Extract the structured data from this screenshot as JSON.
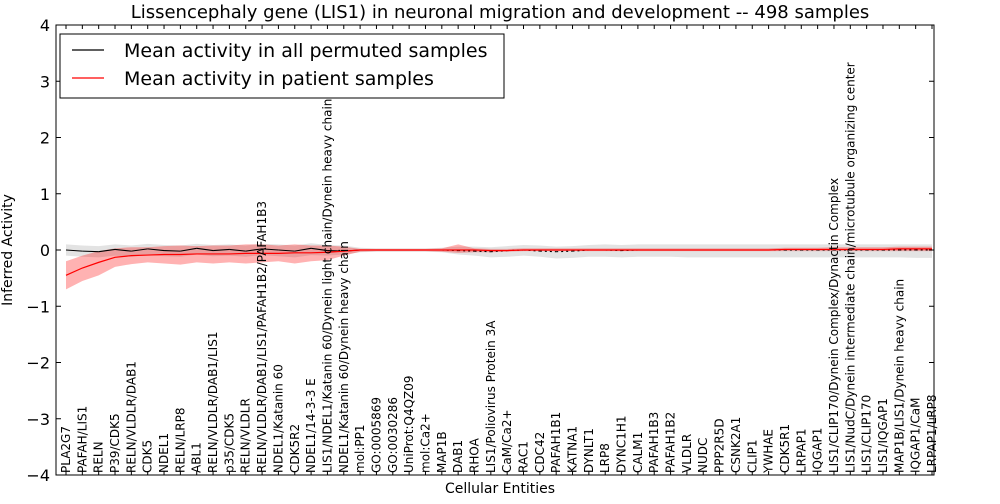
{
  "chart_data": {
    "type": "line",
    "title": "Lissencephaly gene (LIS1) in neuronal migration and development -- 498 samples",
    "xlabel": "Cellular Entities",
    "ylabel": "Inferred Activity",
    "ylim": [
      -4,
      4
    ],
    "yticks": [
      4,
      3,
      2,
      1,
      0,
      -1,
      -2,
      -3,
      -4
    ],
    "ytick_labels": [
      "4",
      "3",
      "2",
      "1",
      "0",
      "−1",
      "−2",
      "−3",
      "−4"
    ],
    "legend": {
      "placement": "top-left",
      "entries": [
        {
          "label": "Mean activity in all permuted samples",
          "color": "#000000"
        },
        {
          "label": "Mean activity in patient samples",
          "color": "#ff0000"
        }
      ]
    },
    "categories": [
      "PLA2G7",
      "PAFAH/LIS1",
      "RELN",
      "P39/CDK5",
      "RELN/VLDLR/DAB1",
      "CDK5",
      "NDEL1",
      "RELN/LRP8",
      "ABL1",
      "RELN/VLDLR/DAB1/LIS1",
      "p35/CDK5",
      "RELN/VLDLR",
      "RELN/VLDLR/DAB1/LIS1/PAFAH1B2/PAFAH1B3",
      "NDEL1/Katanin 60",
      "CDK5R2",
      "NDEL1/14-3-3 E",
      "LIS1/NDEL1/Katanin 60/Dynein light chain/Dynein heavy chain",
      "NDEL1/Katanin 60/Dynein heavy chain",
      "mol:PP1",
      "GO:0005869",
      "GO:0030286",
      "UniProt:Q4QZ09",
      "mol:Ca2+",
      "MAP1B",
      "DAB1",
      "RHOA",
      "LIS1/Poliovirus Protein 3A",
      "CaM/Ca2+",
      "RAC1",
      "CDC42",
      "PAFAH1B1",
      "KATNA1",
      "DYNLT1",
      "LRP8",
      "DYNC1H1",
      "CALM1",
      "PAFAH1B3",
      "PAFAH1B2",
      "VLDLR",
      "NUDC",
      "PPP2R5D",
      "CSNK2A1",
      "CLIP1",
      "YWHAE",
      "CDK5R1",
      "LRPAP1",
      "IQGAP1",
      "LIS1/CLIP170/Dynein Complex/Dynactin Complex",
      "LIS1/NudC/Dynein intermediate chain/microtubule organizing center",
      "LIS1/CLIP170",
      "LIS1/IQGAP1",
      "MAP1B/LIS1/Dynein heavy chain",
      "IQGAP1/CaM",
      "LRPAP1/LRP8"
    ],
    "series": [
      {
        "name": "Mean activity in all permuted samples",
        "color": "#000000",
        "values": [
          0.0,
          -0.02,
          -0.03,
          0.01,
          -0.02,
          0.02,
          -0.01,
          -0.02,
          0.03,
          -0.01,
          0.01,
          -0.02,
          0.02,
          0.0,
          -0.02,
          0.03,
          -0.01,
          -0.02,
          0.0,
          0.0,
          0.0,
          0.0,
          0.0,
          0.0,
          -0.01,
          -0.02,
          -0.03,
          -0.01,
          0.0,
          -0.02,
          -0.03,
          -0.02,
          0.0,
          0.0,
          -0.01,
          0.0,
          0.0,
          0.0,
          0.0,
          0.0,
          0.0,
          0.0,
          0.0,
          0.0,
          0.0,
          0.0,
          0.0,
          0.0,
          0.0,
          0.0,
          0.0,
          0.0,
          0.0,
          0.0
        ],
        "lower": [
          -0.1,
          -0.12,
          -0.13,
          -0.1,
          -0.12,
          -0.09,
          -0.11,
          -0.12,
          -0.08,
          -0.11,
          -0.1,
          -0.12,
          -0.09,
          -0.11,
          -0.13,
          -0.09,
          -0.1,
          -0.08,
          -0.04,
          -0.03,
          -0.03,
          -0.03,
          -0.03,
          -0.04,
          -0.08,
          -0.1,
          -0.13,
          -0.12,
          -0.1,
          -0.12,
          -0.15,
          -0.14,
          -0.12,
          -0.12,
          -0.13,
          -0.12,
          -0.12,
          -0.12,
          -0.13,
          -0.13,
          -0.13,
          -0.13,
          -0.13,
          -0.13,
          -0.13,
          -0.13,
          -0.13,
          -0.13,
          -0.13,
          -0.13,
          -0.13,
          -0.13,
          -0.14,
          -0.14
        ],
        "upper": [
          0.1,
          0.08,
          0.07,
          0.1,
          0.08,
          0.11,
          0.09,
          0.08,
          0.11,
          0.09,
          0.1,
          0.08,
          0.11,
          0.1,
          0.08,
          0.12,
          0.09,
          0.08,
          0.04,
          0.03,
          0.03,
          0.03,
          0.03,
          0.04,
          0.06,
          0.06,
          0.05,
          0.07,
          0.09,
          0.08,
          0.06,
          0.07,
          0.09,
          0.1,
          0.09,
          0.1,
          0.1,
          0.1,
          0.1,
          0.1,
          0.1,
          0.1,
          0.1,
          0.1,
          0.1,
          0.1,
          0.1,
          0.1,
          0.1,
          0.1,
          0.1,
          0.1,
          0.1,
          0.1
        ]
      },
      {
        "name": "Mean activity in patient samples",
        "color": "#ff0000",
        "values": [
          -0.45,
          -0.32,
          -0.22,
          -0.13,
          -0.1,
          -0.09,
          -0.08,
          -0.08,
          -0.07,
          -0.07,
          -0.07,
          -0.06,
          -0.06,
          -0.06,
          -0.05,
          -0.05,
          -0.04,
          -0.02,
          0.0,
          0.0,
          0.0,
          0.0,
          0.0,
          0.0,
          0.0,
          0.0,
          -0.01,
          -0.01,
          0.0,
          0.0,
          0.0,
          0.0,
          0.0,
          0.0,
          0.0,
          0.0,
          0.0,
          0.0,
          0.0,
          0.0,
          0.0,
          0.0,
          0.0,
          0.0,
          0.01,
          0.01,
          0.01,
          0.01,
          0.01,
          0.01,
          0.01,
          0.02,
          0.02,
          0.02
        ],
        "lower": [
          -0.7,
          -0.55,
          -0.45,
          -0.3,
          -0.25,
          -0.22,
          -0.24,
          -0.26,
          -0.22,
          -0.24,
          -0.22,
          -0.24,
          -0.22,
          -0.2,
          -0.24,
          -0.2,
          -0.18,
          -0.1,
          -0.03,
          -0.02,
          -0.02,
          -0.02,
          -0.02,
          -0.03,
          -0.05,
          -0.04,
          -0.04,
          -0.03,
          -0.02,
          -0.02,
          -0.02,
          -0.02,
          -0.02,
          -0.02,
          -0.02,
          -0.02,
          -0.02,
          -0.02,
          -0.02,
          -0.02,
          -0.02,
          -0.02,
          -0.02,
          -0.02,
          -0.02,
          -0.02,
          -0.02,
          -0.02,
          -0.02,
          -0.02,
          -0.02,
          -0.02,
          -0.02,
          -0.02
        ],
        "upper": [
          -0.2,
          -0.1,
          -0.02,
          0.03,
          0.05,
          0.05,
          0.07,
          0.08,
          0.07,
          0.08,
          0.08,
          0.1,
          0.1,
          0.08,
          0.1,
          0.08,
          0.08,
          0.06,
          0.02,
          0.02,
          0.02,
          0.02,
          0.02,
          0.03,
          0.1,
          0.03,
          0.02,
          0.02,
          0.03,
          0.03,
          0.03,
          0.03,
          0.03,
          0.03,
          0.03,
          0.03,
          0.03,
          0.03,
          0.03,
          0.03,
          0.03,
          0.03,
          0.03,
          0.03,
          0.04,
          0.04,
          0.04,
          0.05,
          0.05,
          0.05,
          0.05,
          0.06,
          0.06,
          0.06
        ]
      }
    ]
  }
}
